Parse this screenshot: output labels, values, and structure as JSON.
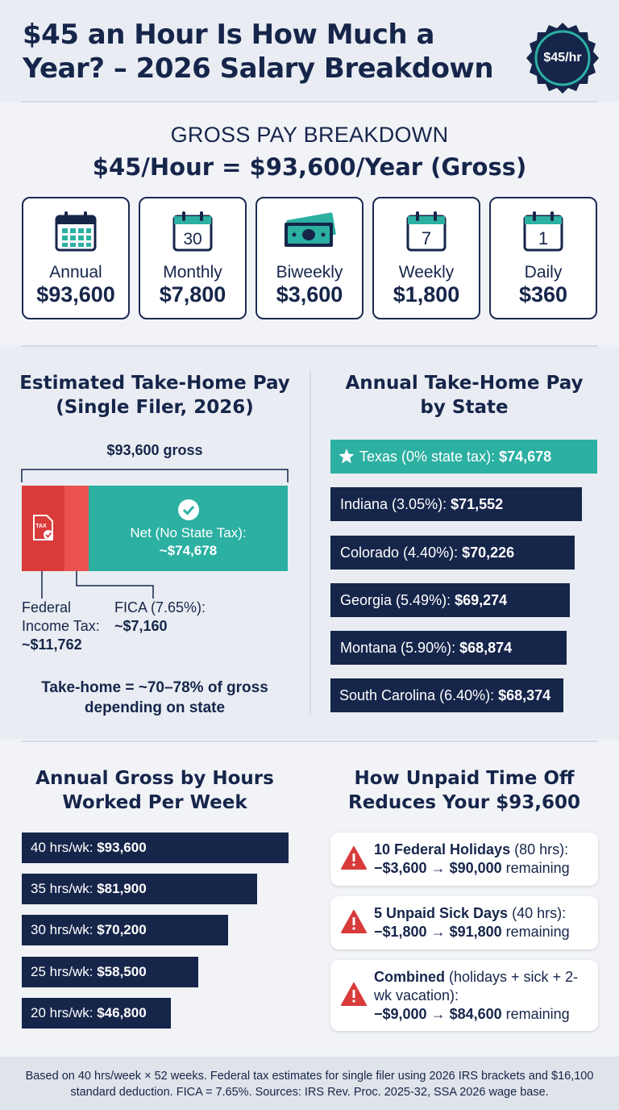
{
  "header": {
    "title": "$45 an Hour Is How Much a Year? – 2026 Salary Breakdown",
    "badge": "$45/hr"
  },
  "gross": {
    "heading": "GROSS PAY BREAKDOWN",
    "subheading": "$45/Hour = $93,600/Year (Gross)",
    "cards": [
      {
        "label": "Annual",
        "value": "$93,600",
        "icon": "calendar-grid-icon"
      },
      {
        "label": "Monthly",
        "value": "$7,800",
        "icon": "calendar-icon",
        "icon_text": "30"
      },
      {
        "label": "Biweekly",
        "value": "$3,600",
        "icon": "cash-stack-icon"
      },
      {
        "label": "Weekly",
        "value": "$1,800",
        "icon": "calendar-icon",
        "icon_text": "7"
      },
      {
        "label": "Daily",
        "value": "$360",
        "icon": "calendar-icon",
        "icon_text": "1"
      }
    ]
  },
  "takehome": {
    "title_line1": "Estimated Take-Home Pay",
    "title_line2": "(Single Filer, 2026)",
    "gross_label": "$93,600 gross",
    "tax_icon_text": "TAX",
    "net_label": "Net (No State Tax):",
    "net_value": "~$74,678",
    "federal_label_1": "Federal",
    "federal_label_2": "Income Tax:",
    "federal_value": "~$11,762",
    "fica_label": "FICA (7.65%):",
    "fica_value": "~$7,160",
    "note_line1": "Take-home = ~70–78% of gross",
    "note_line2": "depending on state",
    "colors": {
      "federal": "#d93a3a",
      "fica": "#ea5252",
      "net": "#2bb0a2"
    }
  },
  "states": {
    "title_line1": "Annual Take-Home Pay",
    "title_line2": "by State",
    "items": [
      {
        "label": "Texas (0% state tax):",
        "value": "$74,678",
        "amount": 74678,
        "highlight": true
      },
      {
        "label": "Indiana (3.05%):",
        "value": "$71,552",
        "amount": 71552
      },
      {
        "label": "Colorado (4.40%):",
        "value": "$70,226",
        "amount": 70226
      },
      {
        "label": "Georgia (5.49%):",
        "value": "$69,274",
        "amount": 69274
      },
      {
        "label": "Montana (5.90%):",
        "value": "$68,874",
        "amount": 68874
      },
      {
        "label": "South Carolina (6.40%):",
        "value": "$68,374",
        "amount": 68374
      }
    ]
  },
  "hours": {
    "title_line1": "Annual Gross by Hours",
    "title_line2": "Worked Per Week",
    "items": [
      {
        "label": "40 hrs/wk:",
        "value": "$93,600",
        "amount": 93600
      },
      {
        "label": "35 hrs/wk:",
        "value": "$81,900",
        "amount": 81900
      },
      {
        "label": "30 hrs/wk:",
        "value": "$70,200",
        "amount": 70200
      },
      {
        "label": "25 hrs/wk:",
        "value": "$58,500",
        "amount": 58500
      },
      {
        "label": "20 hrs/wk:",
        "value": "$46,800",
        "amount": 46800
      }
    ]
  },
  "pto": {
    "title_line1": "How Unpaid Time Off",
    "title_line2": "Reduces Your $93,600",
    "items": [
      {
        "bold": "10 Federal Holidays",
        "rest": " (80 hrs):",
        "change": "−$3,600 → $90,000",
        "suffix": " remaining"
      },
      {
        "bold": "5 Unpaid Sick Days",
        "rest": " (40 hrs):",
        "change": "−$1,800 → $91,800",
        "suffix": " remaining"
      },
      {
        "bold": "Combined",
        "rest": " (holidays + sick + 2-wk vacation):",
        "change": "−$9,000 → $84,600",
        "suffix": " remaining"
      }
    ]
  },
  "footer": {
    "text": "Based on 40 hrs/week × 52 weeks. Federal tax estimates for single filer using 2026 IRS brackets and $16,100 standard deduction. FICA = 7.65%. Sources: IRS Rev. Proc. 2025-32, SSA 2026 wage base."
  },
  "colors": {
    "navy": "#16254a",
    "teal": "#2bb0a2",
    "red": "#d93a3a"
  }
}
